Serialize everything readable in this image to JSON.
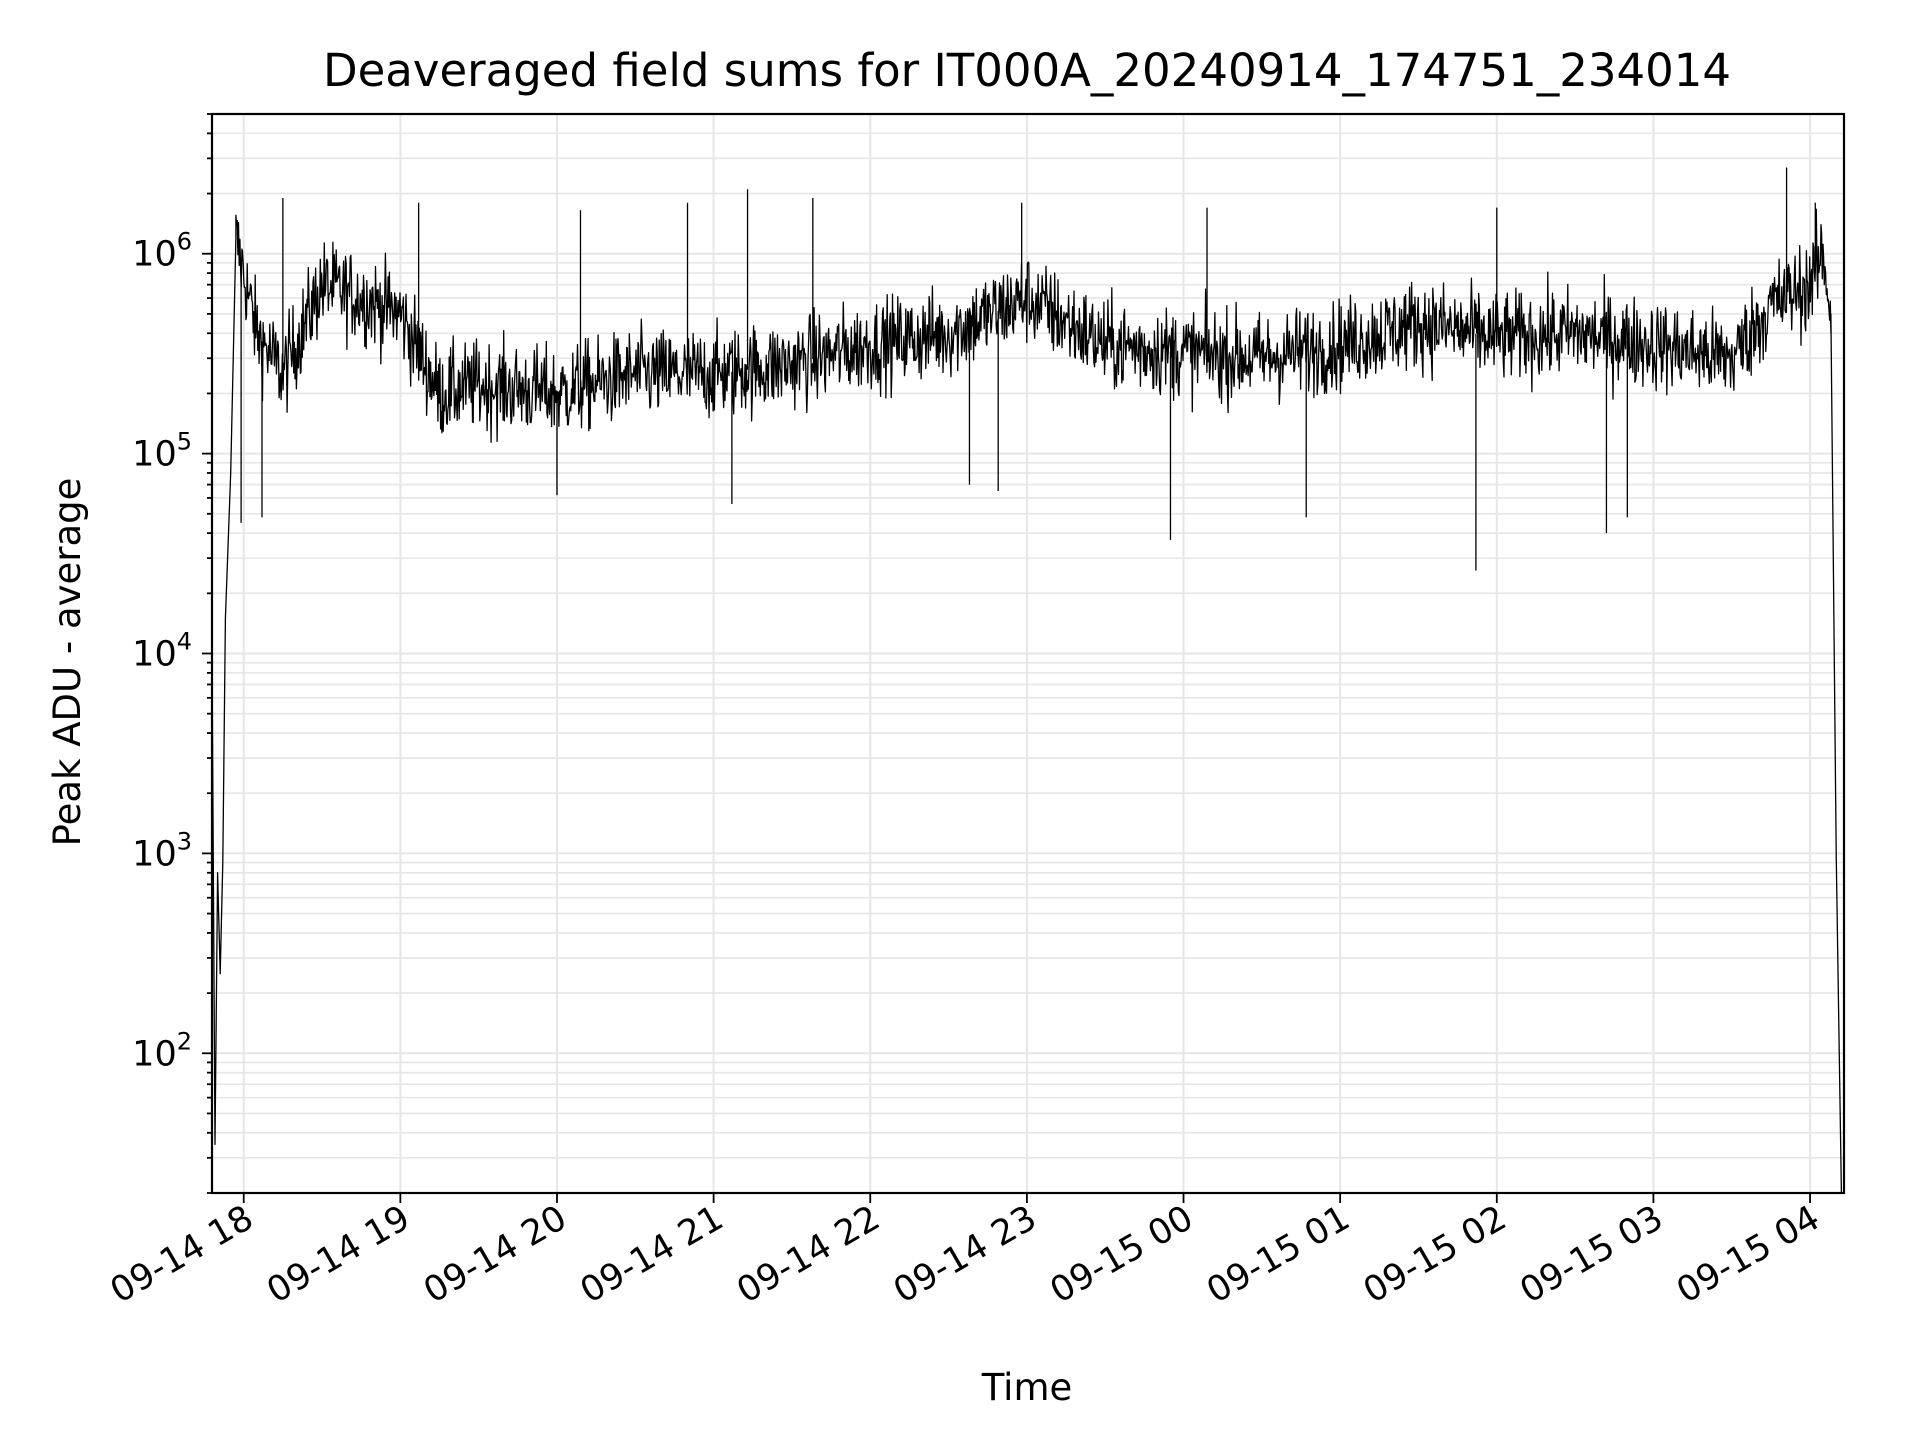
{
  "chart_data": {
    "type": "line",
    "title": "Deaveraged field sums for IT000A_20240914_174751_234014",
    "xlabel": "Time",
    "ylabel": "Peak ADU - average",
    "yscale": "log",
    "ylim": [
      20,
      5000000
    ],
    "xlim": [
      "2024-09-14 17:47:51",
      "2024-09-15 04:13:00"
    ],
    "grid": true,
    "line_color": "#000000",
    "grid_color": "#e6e6e6",
    "x_ticks": [
      "2024-09-14 18:00",
      "2024-09-14 19:00",
      "2024-09-14 20:00",
      "2024-09-14 21:00",
      "2024-09-14 22:00",
      "2024-09-14 23:00",
      "2024-09-15 00:00",
      "2024-09-15 01:00",
      "2024-09-15 02:00",
      "2024-09-15 03:00",
      "2024-09-15 04:00"
    ],
    "x_tick_labels": [
      "09-14 18",
      "09-14 19",
      "09-14 20",
      "09-14 21",
      "09-14 22",
      "09-14 23",
      "09-15 00",
      "09-15 01",
      "09-15 02",
      "09-15 03",
      "09-15 04"
    ],
    "y_ticks": [
      100,
      1000,
      10000,
      100000,
      1000000
    ],
    "y_tick_labels": [
      {
        "base": "10",
        "exp": "2"
      },
      {
        "base": "10",
        "exp": "3"
      },
      {
        "base": "10",
        "exp": "4"
      },
      {
        "base": "10",
        "exp": "5"
      },
      {
        "base": "10",
        "exp": "6"
      }
    ],
    "series": [
      {
        "x": [
          "2024-09-14 17:48",
          "2024-09-14 17:49",
          "2024-09-14 17:50",
          "2024-09-14 17:51",
          "2024-09-14 17:52",
          "2024-09-14 17:53",
          "2024-09-14 17:55",
          "2024-09-14 17:57",
          "2024-09-14 18:05",
          "2024-09-14 18:15",
          "2024-09-14 18:30",
          "2024-09-14 18:45",
          "2024-09-14 19:00",
          "2024-09-14 19:15",
          "2024-09-14 19:30",
          "2024-09-14 20:00",
          "2024-09-14 20:30",
          "2024-09-14 21:00",
          "2024-09-14 21:30",
          "2024-09-14 22:00",
          "2024-09-14 22:30",
          "2024-09-14 23:00",
          "2024-09-14 23:30",
          "2024-09-15 00:00",
          "2024-09-15 00:30",
          "2024-09-15 01:00",
          "2024-09-15 01:30",
          "2024-09-15 02:00",
          "2024-09-15 02:30",
          "2024-09-15 03:00",
          "2024-09-15 03:30",
          "2024-09-15 03:45",
          "2024-09-15 04:00",
          "2024-09-15 04:05",
          "2024-09-15 04:08",
          "2024-09-15 04:10",
          "2024-09-15 04:12"
        ],
        "y": [
          5000,
          35,
          800,
          250,
          900,
          15000,
          80000,
          1200000,
          400000,
          250000,
          700000,
          600000,
          500000,
          200000,
          220000,
          200000,
          250000,
          250000,
          280000,
          350000,
          400000,
          600000,
          350000,
          320000,
          300000,
          350000,
          450000,
          380000,
          400000,
          350000,
          300000,
          550000,
          700000,
          1000000,
          500000,
          1000,
          20
        ]
      }
    ],
    "spikes_high": [
      [
        "2024-09-14 18:15",
        1900000
      ],
      [
        "2024-09-14 19:07",
        1800000
      ],
      [
        "2024-09-14 20:09",
        1650000
      ],
      [
        "2024-09-14 20:50",
        1800000
      ],
      [
        "2024-09-14 21:13",
        2100000
      ],
      [
        "2024-09-14 21:38",
        1900000
      ],
      [
        "2024-09-14 22:58",
        1800000
      ],
      [
        "2024-09-15 00:09",
        1700000
      ],
      [
        "2024-09-15 02:00",
        1700000
      ],
      [
        "2024-09-15 03:51",
        2700000
      ],
      [
        "2024-09-15 04:02",
        1800000
      ]
    ],
    "spikes_low": [
      [
        "2024-09-14 17:59",
        45000
      ],
      [
        "2024-09-14 18:07",
        48000
      ],
      [
        "2024-09-14 20:00",
        62000
      ],
      [
        "2024-09-14 21:07",
        56000
      ],
      [
        "2024-09-14 22:38",
        70000
      ],
      [
        "2024-09-14 22:49",
        65000
      ],
      [
        "2024-09-14 23:55",
        37000
      ],
      [
        "2024-09-15 00:47",
        48000
      ],
      [
        "2024-09-15 01:52",
        26000
      ],
      [
        "2024-09-15 02:42",
        40000
      ],
      [
        "2024-09-15 02:50",
        48000
      ]
    ]
  }
}
